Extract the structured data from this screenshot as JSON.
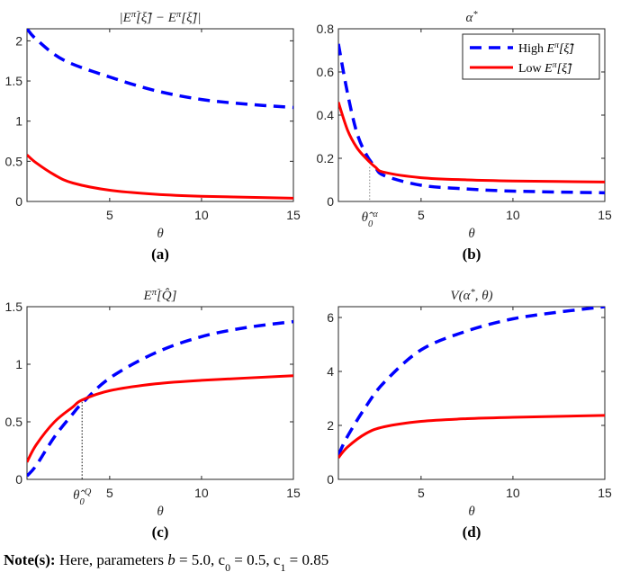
{
  "colors": {
    "high": "#0000ff",
    "low": "#ff0000",
    "axis": "#262626"
  },
  "legend": {
    "placement": "top-right",
    "panel": "b",
    "entries": [
      {
        "series": "high",
        "label": [
          {
            "t": "High "
          },
          {
            "t": "E",
            "i": true
          },
          {
            "t": "π",
            "sup": true,
            "i": true
          },
          {
            "t": "[ξ̃]",
            "i": true
          }
        ]
      },
      {
        "series": "low",
        "label": [
          {
            "t": "Low "
          },
          {
            "t": "E",
            "i": true
          },
          {
            "t": "π",
            "sup": true,
            "i": true
          },
          {
            "t": "[ξ̃]",
            "i": true
          }
        ]
      }
    ]
  },
  "note": [
    {
      "t": "Note(s):",
      "b": true
    },
    {
      "t": " Here, parameters "
    },
    {
      "t": "b",
      "i": true
    },
    {
      "t": " = 5.0, c"
    },
    {
      "t": "0",
      "sub": true
    },
    {
      "t": " = 0.5, c"
    },
    {
      "t": "1",
      "sub": true
    },
    {
      "t": " = 0.85"
    }
  ],
  "chart_data": [
    {
      "id": "a",
      "type": "line",
      "panel_label": "(a)",
      "title": [
        {
          "t": "|E"
        },
        {
          "t": "π̃",
          "sup": true
        },
        {
          "t": "[ξ̃] − E"
        },
        {
          "t": "π",
          "sup": true
        },
        {
          "t": "[ξ̃]|"
        }
      ],
      "xlabel": "θ",
      "xlim": [
        0.5,
        15
      ],
      "ylim": [
        0,
        2.15
      ],
      "xticks": [
        5,
        10,
        15
      ],
      "yticks": [
        0,
        0.5,
        1,
        1.5,
        2
      ],
      "ytick_labels": [
        "0",
        "0.5",
        "1",
        "1.5",
        "2"
      ],
      "series": [
        {
          "key": "high",
          "style": "dashed",
          "x": [
            0.5,
            1,
            2.5,
            5,
            7.5,
            10,
            12.5,
            15
          ],
          "y": [
            2.15,
            2.02,
            1.76,
            1.55,
            1.38,
            1.27,
            1.21,
            1.17
          ]
        },
        {
          "key": "low",
          "style": "solid",
          "x": [
            0.5,
            1,
            2,
            3,
            5,
            7.5,
            10,
            15
          ],
          "y": [
            0.58,
            0.48,
            0.33,
            0.23,
            0.14,
            0.09,
            0.065,
            0.04
          ]
        }
      ]
    },
    {
      "id": "b",
      "type": "line",
      "panel_label": "(b)",
      "title": [
        {
          "t": "α"
        },
        {
          "t": "*",
          "sup": true
        }
      ],
      "xlabel": "θ",
      "xlim": [
        0.5,
        15
      ],
      "ylim": [
        0,
        0.8
      ],
      "xticks": [
        5,
        10,
        15
      ],
      "yticks": [
        0,
        0.2,
        0.4,
        0.6,
        0.8
      ],
      "ytick_labels": [
        "0",
        "0.2",
        "0.4",
        "0.6",
        "0.8"
      ],
      "marker": {
        "x": 2.2,
        "y": 0.16,
        "label": [
          {
            "t": "θ̂"
          },
          {
            "t": "0",
            "sub": true
          },
          {
            "t": "α",
            "sup": true
          }
        ]
      },
      "series": [
        {
          "key": "high",
          "style": "dashed",
          "x": [
            0.5,
            1,
            1.5,
            2,
            2.5,
            3,
            5,
            7.5,
            10,
            15
          ],
          "y": [
            0.73,
            0.5,
            0.32,
            0.22,
            0.16,
            0.12,
            0.075,
            0.058,
            0.048,
            0.04
          ]
        },
        {
          "key": "low",
          "style": "solid",
          "x": [
            0.5,
            1,
            1.5,
            2,
            2.5,
            3,
            5,
            7.5,
            10,
            15
          ],
          "y": [
            0.46,
            0.33,
            0.25,
            0.2,
            0.16,
            0.135,
            0.11,
            0.1,
            0.095,
            0.09
          ]
        }
      ]
    },
    {
      "id": "c",
      "type": "line",
      "panel_label": "(c)",
      "title": [
        {
          "t": "E"
        },
        {
          "t": "π̃",
          "sup": true
        },
        {
          "t": "[Q̂]"
        }
      ],
      "xlabel": "θ",
      "xlim": [
        0.5,
        15
      ],
      "ylim": [
        0,
        1.5
      ],
      "xticks": [
        5,
        10,
        15
      ],
      "yticks": [
        0,
        0.5,
        1,
        1.5
      ],
      "ytick_labels": [
        "0",
        "0.5",
        "1",
        "1.5"
      ],
      "marker": {
        "x": 3.5,
        "y": 0.7,
        "label": [
          {
            "t": "θ̂"
          },
          {
            "t": "0",
            "sub": true
          },
          {
            "t": "Q",
            "sup": true
          }
        ]
      },
      "series": [
        {
          "key": "high",
          "style": "dashed",
          "x": [
            0.5,
            1,
            2,
            3,
            3.5,
            5,
            7.5,
            10,
            12.5,
            15
          ],
          "y": [
            0.03,
            0.12,
            0.37,
            0.57,
            0.66,
            0.88,
            1.1,
            1.24,
            1.32,
            1.37
          ]
        },
        {
          "key": "low",
          "style": "solid",
          "x": [
            0.5,
            1,
            2,
            3,
            3.5,
            5,
            7.5,
            10,
            15
          ],
          "y": [
            0.15,
            0.3,
            0.5,
            0.63,
            0.69,
            0.77,
            0.83,
            0.86,
            0.9
          ]
        }
      ]
    },
    {
      "id": "d",
      "type": "line",
      "panel_label": "(d)",
      "title": [
        {
          "t": "V(α"
        },
        {
          "t": "*",
          "sup": true
        },
        {
          "t": ", θ)"
        }
      ],
      "xlabel": "θ",
      "xlim": [
        0.5,
        15
      ],
      "ylim": [
        0,
        6.4
      ],
      "xticks": [
        5,
        10,
        15
      ],
      "yticks": [
        0,
        2,
        4,
        6
      ],
      "ytick_labels": [
        "0",
        "2",
        "4",
        "6"
      ],
      "series": [
        {
          "key": "high",
          "style": "dashed",
          "x": [
            0.5,
            1,
            2,
            3,
            5,
            7.5,
            10,
            12.5,
            15
          ],
          "y": [
            0.9,
            1.6,
            2.7,
            3.6,
            4.8,
            5.5,
            5.95,
            6.2,
            6.4
          ]
        },
        {
          "key": "low",
          "style": "solid",
          "x": [
            0.5,
            1,
            2,
            3,
            5,
            7.5,
            10,
            15
          ],
          "y": [
            0.8,
            1.2,
            1.7,
            1.95,
            2.15,
            2.25,
            2.3,
            2.37
          ]
        }
      ]
    }
  ]
}
